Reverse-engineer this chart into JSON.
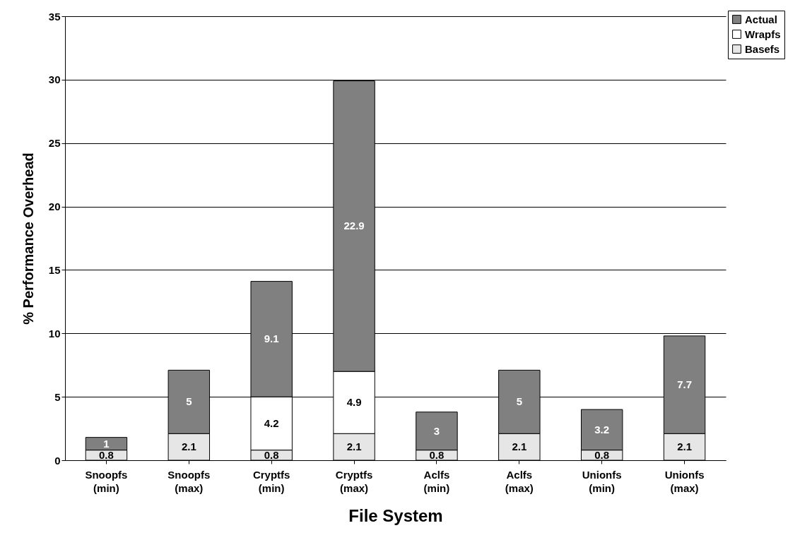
{
  "chart_data": {
    "type": "bar",
    "stacked": true,
    "xlabel": "File System",
    "ylabel": "% Performance Overhead",
    "categories": [
      "Snoopfs (min)",
      "Snoopfs (max)",
      "Cryptfs (min)",
      "Cryptfs (max)",
      "Aclfs (min)",
      "Aclfs (max)",
      "Unionfs (min)",
      "Unionfs (max)"
    ],
    "series": [
      {
        "name": "Basefs",
        "color": "#e6e6e6",
        "values": [
          0.8,
          2.1,
          0.8,
          2.1,
          0.8,
          2.1,
          0.8,
          2.1
        ]
      },
      {
        "name": "Wrapfs",
        "color": "#ffffff",
        "values": [
          null,
          null,
          4.2,
          4.9,
          null,
          null,
          null,
          null
        ]
      },
      {
        "name": "Actual",
        "color": "#808080",
        "values": [
          1,
          5,
          9.1,
          22.9,
          3,
          5,
          3.2,
          7.7
        ]
      }
    ],
    "ylim": [
      0,
      35
    ],
    "yticks": [
      0,
      5,
      10,
      15,
      20,
      25,
      30,
      35
    ],
    "grid": "y",
    "legend": "top right",
    "data_labels": true
  }
}
